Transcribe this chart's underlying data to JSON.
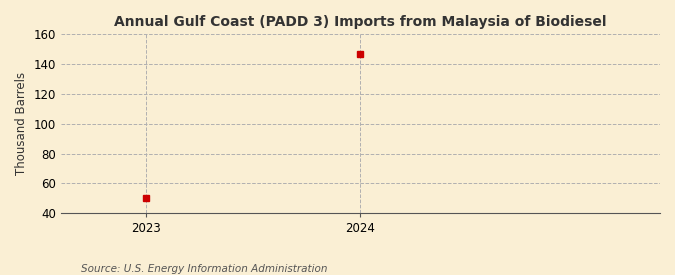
{
  "title": "Annual Gulf Coast (PADD 3) Imports from Malaysia of Biodiesel",
  "ylabel": "Thousand Barrels",
  "source_text": "Source: U.S. Energy Information Administration",
  "x_values": [
    2023,
    2024
  ],
  "y_values": [
    50,
    147
  ],
  "xlim": [
    2022.6,
    2025.4
  ],
  "ylim": [
    40,
    160
  ],
  "yticks": [
    40,
    60,
    80,
    100,
    120,
    140,
    160
  ],
  "xticks": [
    2023,
    2024
  ],
  "background_color": "#faefd4",
  "plot_bg_color": "#faefd4",
  "marker_color": "#cc0000",
  "grid_color": "#b0b0b0",
  "vline_color": "#b0b0b0",
  "title_fontsize": 10,
  "label_fontsize": 8.5,
  "tick_fontsize": 8.5,
  "source_fontsize": 7.5
}
